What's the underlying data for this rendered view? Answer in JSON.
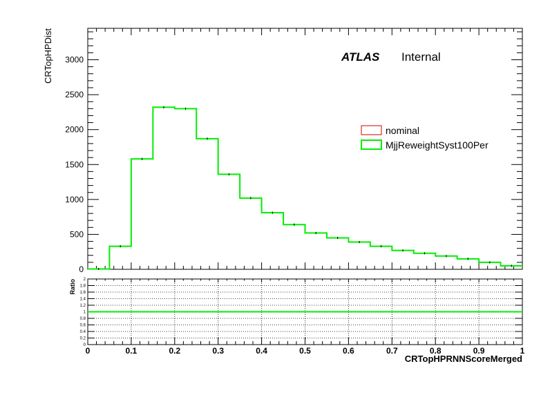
{
  "chart_data": {
    "type": "histogram",
    "atlas_label": "ATLAS",
    "atlas_status": "Internal",
    "main": {
      "ylabel": "CRTopHPDist",
      "ylim": [
        0,
        3450
      ],
      "yticks": [
        0,
        500,
        1000,
        1500,
        2000,
        2500,
        3000
      ],
      "ytick_labels": [
        "0",
        "500",
        "1000",
        "1500",
        "2000",
        "2500",
        "3000"
      ]
    },
    "ratio": {
      "ylabel": "Ratio",
      "ylim": [
        0,
        2
      ],
      "yticks": [
        0,
        0.2,
        0.4,
        0.6,
        0.8,
        1,
        1.2,
        1.4,
        1.6,
        1.8,
        2
      ],
      "ytick_labels": [
        "0",
        "0.2",
        "0.4",
        "0.6",
        "0.8",
        "1",
        "1.2",
        "1.4",
        "1.6",
        "1.8",
        "2"
      ],
      "values": [
        1.0,
        1.0,
        1.0,
        1.0,
        1.0,
        1.0,
        1.0,
        1.0,
        1.0,
        1.0,
        1.0,
        1.0,
        1.0,
        1.0,
        1.0,
        1.0,
        1.0,
        1.0,
        1.0,
        1.0
      ]
    },
    "xlabel": "CRTopHPRNNScoreMerged",
    "xlim": [
      0,
      1
    ],
    "xticks": [
      0,
      0.1,
      0.2,
      0.3,
      0.4,
      0.5,
      0.6,
      0.7,
      0.8,
      0.9,
      1
    ],
    "xtick_labels": [
      "0",
      "0.1",
      "0.2",
      "0.3",
      "0.4",
      "0.5",
      "0.6",
      "0.7",
      "0.8",
      "0.9",
      "1"
    ],
    "bin_edges": [
      0,
      0.05,
      0.1,
      0.15,
      0.2,
      0.25,
      0.3,
      0.35,
      0.4,
      0.45,
      0.5,
      0.55,
      0.6,
      0.65,
      0.7,
      0.75,
      0.8,
      0.85,
      0.9,
      0.95,
      1.0
    ],
    "series": [
      {
        "name": "nominal",
        "color": "#cc0000",
        "values": [
          5,
          330,
          1580,
          2320,
          2300,
          1870,
          1360,
          1020,
          810,
          640,
          520,
          450,
          390,
          330,
          270,
          230,
          190,
          150,
          100,
          50
        ]
      },
      {
        "name": "MjjReweightSyst100Per",
        "color": "#00ee00",
        "values": [
          5,
          330,
          1580,
          2320,
          2300,
          1870,
          1360,
          1020,
          810,
          640,
          520,
          450,
          390,
          330,
          270,
          230,
          190,
          150,
          100,
          50
        ]
      }
    ],
    "legend": [
      "nominal",
      "MjjReweightSyst100Per"
    ],
    "legend_position": "top-right",
    "ratio_grid": true
  }
}
